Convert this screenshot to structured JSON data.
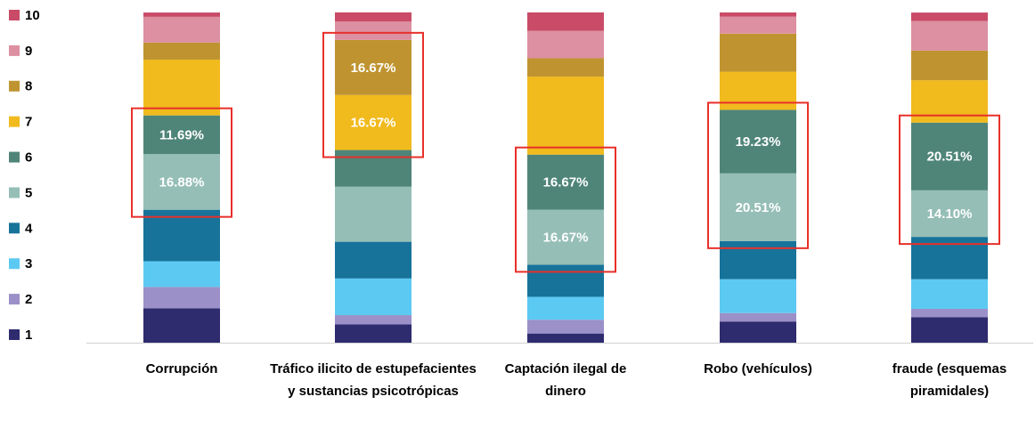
{
  "chart_data": {
    "type": "stacked_bar_percent",
    "categories": [
      "Corrupción",
      "Tráfico ilicito de estupefacientes y sustancias psicotrópicas",
      "Captación ilegal de dinero",
      "Robo (vehículos)",
      "fraude (esquemas piramidales)"
    ],
    "ylim": [
      0,
      100
    ],
    "legend": "left",
    "series": [
      {
        "name": "1",
        "color": "#2e2b6f",
        "values": [
          10.39,
          5.56,
          2.78,
          6.41,
          7.69
        ]
      },
      {
        "name": "2",
        "color": "#9b90c8",
        "values": [
          6.49,
          2.78,
          4.17,
          2.56,
          2.56
        ]
      },
      {
        "name": "3",
        "color": "#5cc9f2",
        "values": [
          7.79,
          11.11,
          6.94,
          10.26,
          8.97
        ]
      },
      {
        "name": "4",
        "color": "#17739a",
        "values": [
          15.58,
          11.11,
          9.72,
          11.54,
          12.82
        ]
      },
      {
        "name": "5",
        "color": "#95beb6",
        "values": [
          16.88,
          16.67,
          16.67,
          20.51,
          14.1
        ],
        "value_labels": [
          "16.88%",
          null,
          "16.67%",
          "20.51%",
          "14.10%"
        ]
      },
      {
        "name": "6",
        "color": "#4f8578",
        "values": [
          11.69,
          11.11,
          16.67,
          19.23,
          20.51
        ],
        "value_labels": [
          "11.69%",
          null,
          "16.67%",
          "19.23%",
          "20.51%"
        ]
      },
      {
        "name": "7",
        "color": "#f1ba1d",
        "values": [
          16.88,
          16.67,
          23.61,
          11.54,
          12.82
        ],
        "value_labels": [
          null,
          "16.67%",
          null,
          null,
          null
        ]
      },
      {
        "name": "8",
        "color": "#bf9430",
        "values": [
          5.19,
          16.67,
          5.56,
          11.54,
          8.97
        ],
        "value_labels": [
          null,
          "16.67%",
          null,
          null,
          null
        ]
      },
      {
        "name": "9",
        "color": "#dc90a1",
        "values": [
          7.79,
          5.56,
          8.33,
          5.13,
          8.97
        ]
      },
      {
        "name": "10",
        "color": "#c94b67",
        "values": [
          1.3,
          2.78,
          5.56,
          1.28,
          2.56
        ]
      }
    ]
  }
}
